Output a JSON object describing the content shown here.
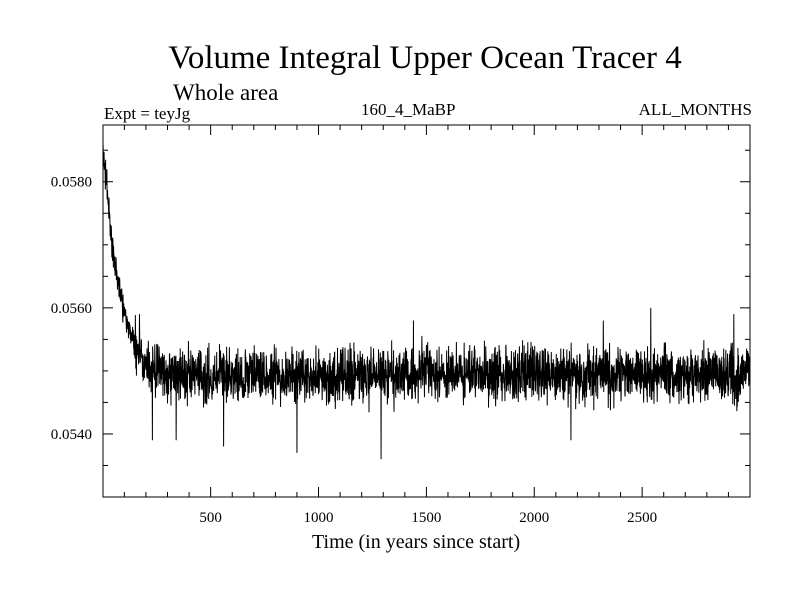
{
  "chart_data": {
    "type": "line",
    "title": "Volume Integral Upper Ocean Tracer 4",
    "subtitle": "Whole area",
    "experiment_label": "Expt = teyJg",
    "run_label": "160_4_MaBP",
    "period_label": "ALL_MONTHS",
    "xlabel": "Time (in years since start)",
    "ylabel": "",
    "xlim": [
      1,
      3000
    ],
    "ylim": [
      0.053,
      0.0589
    ],
    "x_ticks": [
      500,
      1000,
      1500,
      2000,
      2500
    ],
    "x_tick_labels": [
      "500",
      "1000",
      "1500",
      "2000",
      "2500"
    ],
    "y_ticks": [
      0.054,
      0.056,
      0.058
    ],
    "y_tick_labels": [
      "0.0540",
      "0.0560",
      "0.0580"
    ],
    "grid": false,
    "series": [
      {
        "name": "Volume Integral Upper Ocean Tracer 4",
        "description_of_signal": "sampled envelope: rapid decay from ~0.0585 to ~0.0550 over first ~250 years, then noisy equilibrium around 0.0549-0.0550",
        "x": [
          1,
          10,
          20,
          30,
          40,
          50,
          60,
          70,
          80,
          90,
          100,
          110,
          120,
          130,
          140,
          150,
          160,
          170,
          180,
          200,
          220,
          240,
          260,
          280,
          300,
          350,
          400,
          450,
          500,
          550,
          600,
          650,
          700,
          750,
          800,
          850,
          900,
          950,
          1000,
          1050,
          1100,
          1150,
          1200,
          1250,
          1300,
          1350,
          1400,
          1450,
          1500,
          1550,
          1600,
          1650,
          1700,
          1750,
          1800,
          1850,
          1900,
          1950,
          2000,
          2050,
          2100,
          2150,
          2200,
          2250,
          2300,
          2350,
          2400,
          2450,
          2500,
          2550,
          2600,
          2650,
          2700,
          2750,
          2800,
          2850,
          2900,
          2950,
          3000
        ],
        "values": [
          0.0585,
          0.0582,
          0.0579,
          0.0575,
          0.0571,
          0.0568,
          0.0566,
          0.0564,
          0.0563,
          0.0561,
          0.056,
          0.0558,
          0.0557,
          0.0556,
          0.0555,
          0.0554,
          0.0554,
          0.0553,
          0.0552,
          0.0551,
          0.0551,
          0.055,
          0.055,
          0.055,
          0.0549,
          0.055,
          0.0549,
          0.0549,
          0.0549,
          0.055,
          0.0549,
          0.0549,
          0.055,
          0.0549,
          0.055,
          0.0549,
          0.0549,
          0.055,
          0.0549,
          0.0549,
          0.055,
          0.0549,
          0.0549,
          0.0549,
          0.055,
          0.0549,
          0.055,
          0.0549,
          0.055,
          0.0549,
          0.0549,
          0.055,
          0.0549,
          0.055,
          0.0549,
          0.055,
          0.0549,
          0.055,
          0.055,
          0.0549,
          0.0549,
          0.055,
          0.0549,
          0.0549,
          0.055,
          0.0549,
          0.0549,
          0.055,
          0.0549,
          0.0549,
          0.055,
          0.0549,
          0.0549,
          0.0549,
          0.055,
          0.0549,
          0.055,
          0.0549,
          0.055
        ],
        "noise_amplitude": 0.00045,
        "extreme_minima": [
          [
            230,
            0.0539
          ],
          [
            340,
            0.0539
          ],
          [
            560,
            0.0538
          ],
          [
            900,
            0.0537
          ],
          [
            1290,
            0.0536
          ],
          [
            2170,
            0.0539
          ]
        ],
        "extreme_maxima": [
          [
            170,
            0.0559
          ],
          [
            1440,
            0.0558
          ],
          [
            2320,
            0.0558
          ],
          [
            2540,
            0.056
          ],
          [
            2925,
            0.0559
          ]
        ]
      }
    ]
  }
}
